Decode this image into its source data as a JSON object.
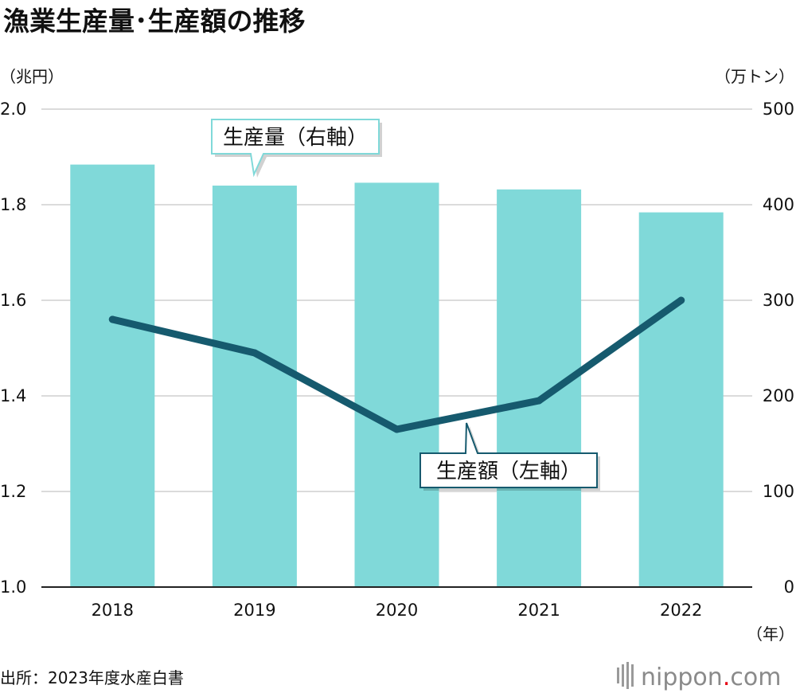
{
  "title": "漁業生産量･生産額の推移",
  "left_unit": "（兆円）",
  "right_unit": "（万トン）",
  "x_unit": "（年）",
  "source": "出所：2023年度水産白書",
  "logo": {
    "text": "nippon",
    "dot": ".",
    "suffix": "com",
    "accent": "#e60012"
  },
  "colors": {
    "bar": "#80d9d9",
    "line": "#165a6e",
    "grid": "#cfcfcf",
    "axis": "#222222",
    "callout_border": "#80d9d9",
    "callout_border_line": "#165a6e"
  },
  "chart_data": {
    "type": "bar+line",
    "categories": [
      "2018",
      "2019",
      "2020",
      "2021",
      "2022"
    ],
    "series": [
      {
        "name": "生産量（右軸）",
        "type": "bar",
        "axis": "right",
        "values": [
          442,
          420,
          423,
          416,
          392
        ]
      },
      {
        "name": "生産額（左軸）",
        "type": "line",
        "axis": "left",
        "values": [
          1.56,
          1.49,
          1.33,
          1.39,
          1.6
        ]
      }
    ],
    "y_left": {
      "min": 1.0,
      "max": 2.0,
      "ticks": [
        "1.0",
        "1.2",
        "1.4",
        "1.6",
        "1.8",
        "2.0"
      ]
    },
    "y_right": {
      "min": 0,
      "max": 500,
      "ticks": [
        "0",
        "100",
        "200",
        "300",
        "400",
        "500"
      ]
    },
    "grid": true
  }
}
